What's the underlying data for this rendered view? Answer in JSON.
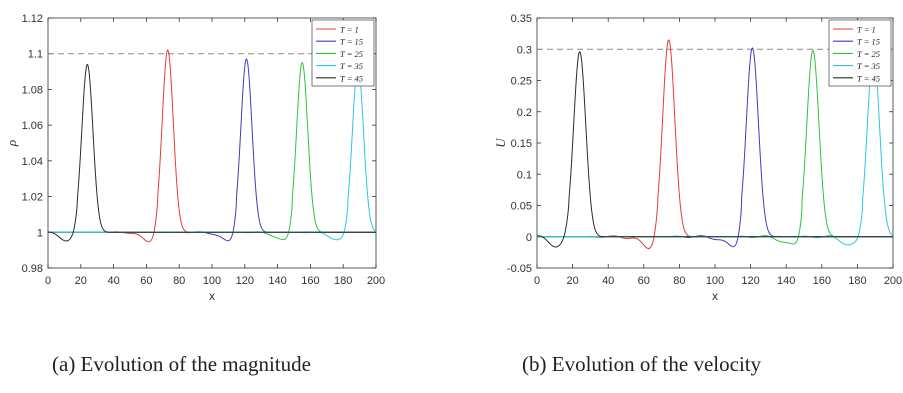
{
  "legend_entries": [
    "T = 1",
    "T = 15",
    "T = 25",
    "T = 35",
    "T = 45"
  ],
  "colors": {
    "T = 1": "#e8393c",
    "T = 15": "#3c3cc8",
    "T = 25": "#2ec43a",
    "T = 35": "#2ac8e2",
    "T = 45": "#2b2b2b",
    "reference_line": "#8a8a8a",
    "axis": "#333333"
  },
  "captions": {
    "a": "(a)  Evolution of the magnitude",
    "b": "(b)  Evolution of the velocity"
  },
  "chart_data": [
    {
      "type": "line",
      "panel": "a",
      "title": "",
      "xlabel": "x",
      "ylabel": "ρ",
      "xlim": [
        0,
        200
      ],
      "ylim": [
        0.98,
        1.12
      ],
      "xticks": [
        "0",
        "20",
        "40",
        "60",
        "80",
        "100",
        "120",
        "140",
        "160",
        "180",
        "200"
      ],
      "yticks": [
        "0.98",
        "1",
        "1.02",
        "1.04",
        "1.06",
        "1.08",
        "1.1",
        "1.12"
      ],
      "reference_line": 1.1,
      "legend_placement": "top-right",
      "baseline": 1.0,
      "series": [
        {
          "name": "T = 1",
          "peak_x": 73,
          "peak": 1.102
        },
        {
          "name": "T = 15",
          "peak_x": 121,
          "peak": 1.097
        },
        {
          "name": "T = 25",
          "peak_x": 155,
          "peak": 1.095
        },
        {
          "name": "T = 35",
          "peak_x": 189,
          "peak": 1.093
        },
        {
          "name": "T = 45",
          "peak_x": 24,
          "peak": 1.094
        }
      ]
    },
    {
      "type": "line",
      "panel": "b",
      "title": "",
      "xlabel": "x",
      "ylabel": "U",
      "xlim": [
        0,
        200
      ],
      "ylim": [
        -0.05,
        0.35
      ],
      "xticks": [
        "0",
        "20",
        "40",
        "60",
        "80",
        "100",
        "120",
        "140",
        "160",
        "180",
        "200"
      ],
      "yticks": [
        "-0.05",
        "0",
        "0.05",
        "0.1",
        "0.15",
        "0.2",
        "0.25",
        "0.3",
        "0.35"
      ],
      "reference_line": 0.3,
      "legend_placement": "top-right",
      "baseline": 0.0,
      "series": [
        {
          "name": "T = 1",
          "peak_x": 74,
          "peak": 0.315
        },
        {
          "name": "T = 15",
          "peak_x": 121,
          "peak": 0.302
        },
        {
          "name": "T = 25",
          "peak_x": 155,
          "peak": 0.298
        },
        {
          "name": "T = 35",
          "peak_x": 189,
          "peak": 0.296
        },
        {
          "name": "T = 45",
          "peak_x": 24,
          "peak": 0.296
        }
      ]
    }
  ]
}
